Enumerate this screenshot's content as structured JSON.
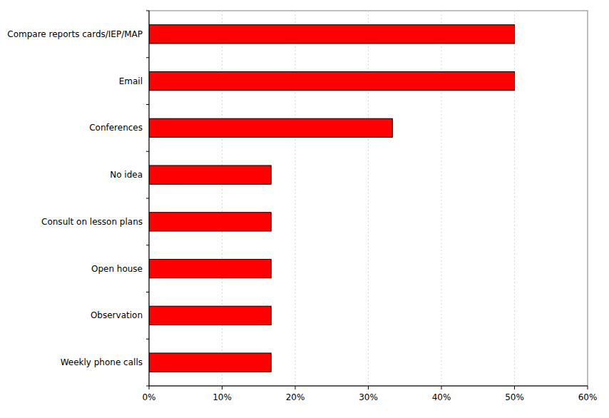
{
  "chart_data": {
    "type": "bar",
    "orientation": "horizontal",
    "categories": [
      "Compare reports cards/IEP/MAP",
      "Email",
      "Conferences",
      "No idea",
      "Consult on lesson plans",
      "Open house",
      "Observation",
      "Weekly phone calls"
    ],
    "values": [
      50,
      50,
      33.3,
      16.7,
      16.7,
      16.7,
      16.7,
      16.7
    ],
    "color": "#ff0000",
    "xlim": [
      0,
      60
    ],
    "xticks": [
      {
        "value": 0,
        "label": "0%"
      },
      {
        "value": 10,
        "label": "10%"
      },
      {
        "value": 20,
        "label": "20%"
      },
      {
        "value": 30,
        "label": "30%"
      },
      {
        "value": 40,
        "label": "40%"
      },
      {
        "value": 50,
        "label": "50%"
      },
      {
        "value": 60,
        "label": "60%"
      }
    ],
    "grid": true
  }
}
